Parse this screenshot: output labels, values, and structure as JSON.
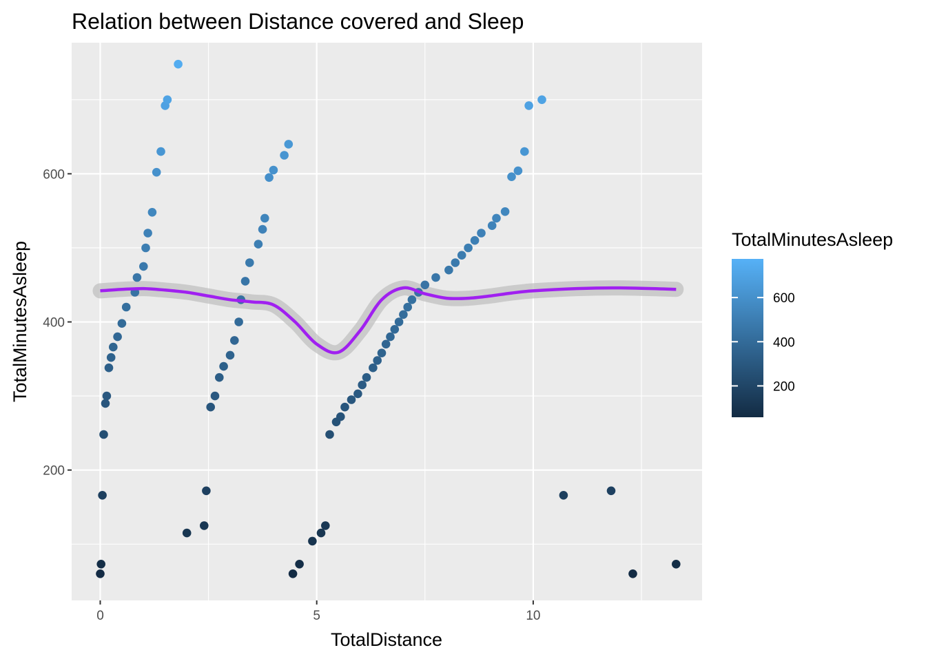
{
  "chart_data": {
    "type": "scatter",
    "title": "Relation between Distance covered and Sleep",
    "xlabel": "TotalDistance",
    "ylabel": "TotalMinutesAsleep",
    "xlim": [
      -0.66,
      13.9
    ],
    "ylim": [
      24,
      777
    ],
    "x_ticks": [
      0,
      5,
      10
    ],
    "x_tick_labels": [
      "0",
      "5",
      "10"
    ],
    "y_ticks": [
      200,
      400,
      600
    ],
    "y_tick_labels": [
      "200",
      "400",
      "600"
    ],
    "grid": true,
    "legend": {
      "title": "TotalMinutesAsleep",
      "placement": "right",
      "type": "colorbar",
      "ticks": [
        200,
        400,
        600
      ],
      "tick_labels": [
        "200",
        "400",
        "600"
      ],
      "range": [
        58,
        775
      ],
      "color_low": "#132B43",
      "color_high": "#56B1F7"
    },
    "smooth_color": "#a020f0",
    "smooth_band_color": "#bebebe",
    "panel_background": "#ebebeb",
    "smooth": {
      "x": [
        0,
        0.5,
        1,
        1.5,
        2,
        2.5,
        3,
        3.5,
        4,
        4.5,
        5,
        5.5,
        6,
        6.5,
        7,
        7.5,
        8,
        8.5,
        9,
        9.5,
        10,
        11,
        12,
        13.3
      ],
      "y": [
        442,
        444,
        445,
        443,
        440,
        435,
        430,
        427,
        423,
        400,
        370,
        359,
        388,
        430,
        446,
        438,
        432,
        432,
        435,
        439,
        442,
        445,
        446,
        444
      ]
    },
    "points_x": [
      0,
      0.02,
      0.05,
      0.08,
      0.12,
      0.15,
      0.2,
      0.25,
      0.3,
      0.4,
      0.5,
      0.6,
      0.8,
      0.85,
      1,
      1.05,
      1.1,
      1.2,
      1.3,
      1.4,
      1.5,
      1.55,
      1.8,
      2,
      2.4,
      2.45,
      2.55,
      2.65,
      2.75,
      2.85,
      3.0,
      3.1,
      3.2,
      3.25,
      3.35,
      3.45,
      3.65,
      3.75,
      3.8,
      3.9,
      4.0,
      4.25,
      4.35,
      4.45,
      4.6,
      4.9,
      5.1,
      5.2,
      5.3,
      5.45,
      5.55,
      5.65,
      5.8,
      5.95,
      6.05,
      6.15,
      6.3,
      6.4,
      6.5,
      6.6,
      6.7,
      6.8,
      6.9,
      7.0,
      7.1,
      7.2,
      7.35,
      7.5,
      7.75,
      8.05,
      8.2,
      8.35,
      8.5,
      8.65,
      8.8,
      9.05,
      9.15,
      9.35,
      9.5,
      9.65,
      9.8,
      9.9,
      10.2,
      10.7,
      11.8,
      12.3,
      13.3
    ],
    "points_y": [
      60,
      73,
      166,
      248,
      290,
      300,
      338,
      352,
      366,
      380,
      398,
      420,
      440,
      460,
      475,
      500,
      520,
      548,
      602,
      630,
      692,
      700,
      748,
      115,
      125,
      172,
      285,
      300,
      325,
      340,
      355,
      375,
      400,
      430,
      455,
      480,
      505,
      525,
      540,
      595,
      605,
      625,
      640,
      60,
      73,
      104,
      115,
      125,
      248,
      265,
      272,
      285,
      295,
      303,
      315,
      325,
      338,
      348,
      358,
      370,
      380,
      390,
      400,
      410,
      420,
      430,
      440,
      450,
      460,
      470,
      480,
      490,
      500,
      510,
      520,
      530,
      540,
      549,
      596,
      604,
      630,
      692,
      700,
      166,
      172,
      60,
      73
    ]
  }
}
